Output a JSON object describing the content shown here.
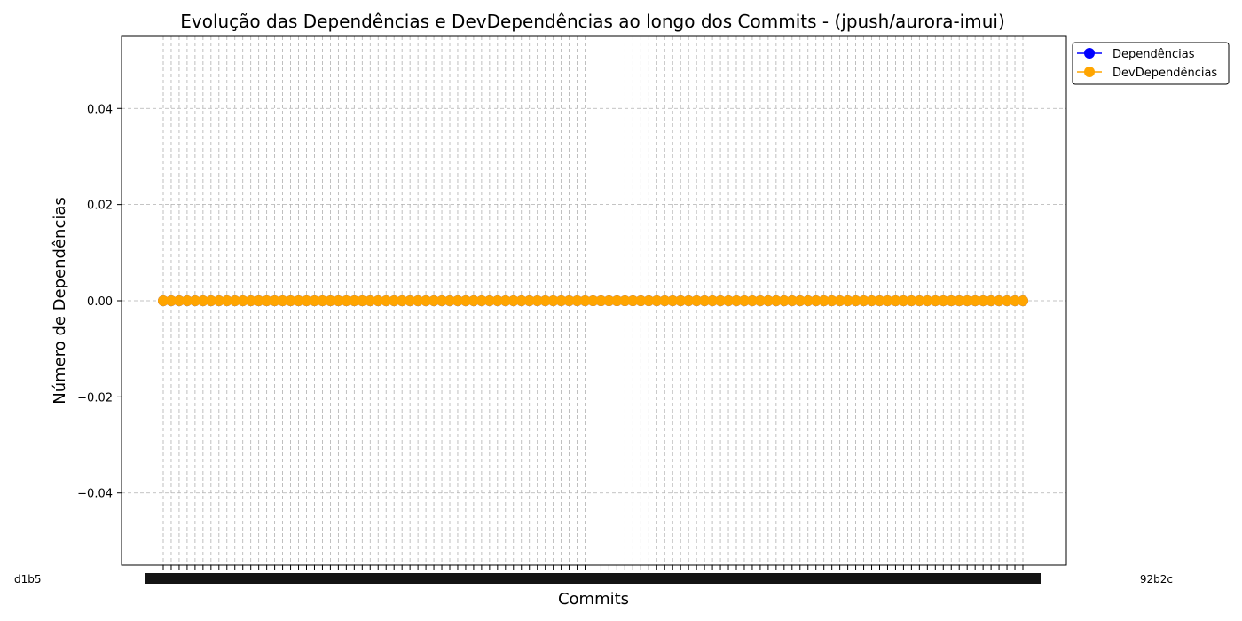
{
  "chart_data": {
    "type": "line",
    "title": "Evolução das Dependências e DevDependências ao longo dos Commits - (jpush/aurora-imui)",
    "xlabel": "Commits",
    "ylabel": "Número de Dependências",
    "ylim": [
      -0.055,
      0.055
    ],
    "yticks": [
      "0.04",
      "0.02",
      "0.00",
      "−0.02",
      "−0.04"
    ],
    "ytick_values": [
      0.04,
      0.02,
      0.0,
      -0.02,
      -0.04
    ],
    "commit_count": 109,
    "xtick_labels_visible": {
      "first": "d1b5",
      "last": "92b2c"
    },
    "grid": true,
    "legend_position": "upper right outside",
    "series": [
      {
        "name": "Dependências",
        "color": "#0000ff",
        "value": 0
      },
      {
        "name": "DevDependências",
        "color": "#ffa500",
        "value": 0
      }
    ]
  }
}
